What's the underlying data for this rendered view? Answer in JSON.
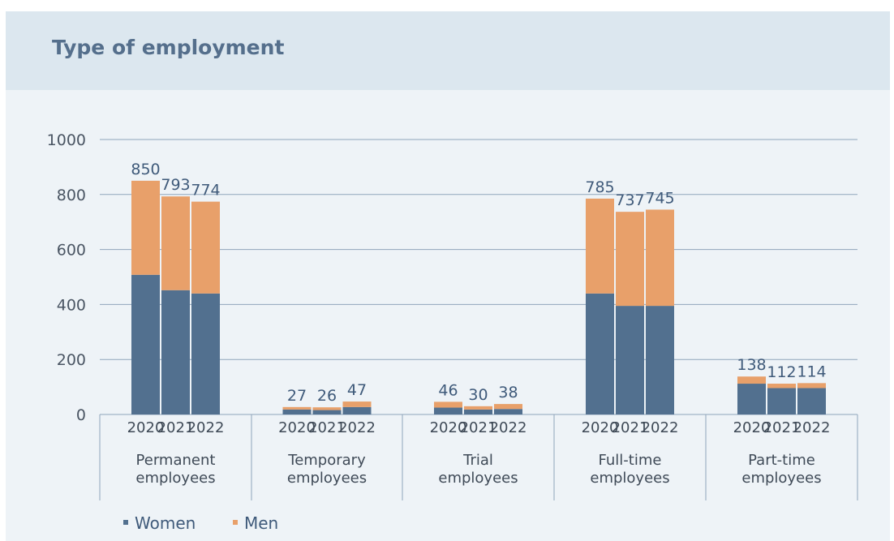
{
  "chart_data": {
    "type": "bar",
    "stacked": true,
    "title": "Type of employment",
    "ylim": [
      0,
      1000
    ],
    "yticks": [
      0,
      200,
      400,
      600,
      800,
      1000
    ],
    "grid": true,
    "legend_position": "bottom-left",
    "groups": [
      {
        "label_lines": [
          "Permanent",
          "employees"
        ],
        "years": [
          "2020",
          "2021",
          "2022"
        ],
        "women": [
          508,
          452,
          440
        ],
        "men": [
          342,
          341,
          334
        ],
        "totals": [
          "850",
          "793",
          "774"
        ]
      },
      {
        "label_lines": [
          "Temporary",
          "employees"
        ],
        "years": [
          "2020",
          "2021",
          "2022"
        ],
        "women": [
          18,
          16,
          27
        ],
        "men": [
          9,
          10,
          20
        ],
        "totals": [
          "27",
          "26",
          "47"
        ]
      },
      {
        "label_lines": [
          "Trial",
          "employees"
        ],
        "years": [
          "2020",
          "2021",
          "2022"
        ],
        "women": [
          25,
          18,
          20
        ],
        "men": [
          21,
          12,
          18
        ],
        "totals": [
          "46",
          "30",
          "38"
        ]
      },
      {
        "label_lines": [
          "Full-time",
          "employees"
        ],
        "years": [
          "2020",
          "2021",
          "2022"
        ],
        "women": [
          440,
          395,
          395
        ],
        "men": [
          345,
          342,
          350
        ],
        "totals": [
          "785",
          "737",
          "745"
        ]
      },
      {
        "label_lines": [
          "Part-time",
          "employees"
        ],
        "years": [
          "2020",
          "2021",
          "2022"
        ],
        "women": [
          112,
          96,
          96
        ],
        "men": [
          26,
          16,
          18
        ],
        "totals": [
          "138",
          "112",
          "114"
        ]
      }
    ],
    "series": [
      {
        "name": "Women",
        "color": "#52708f"
      },
      {
        "name": "Men",
        "color": "#e8a06a"
      }
    ]
  }
}
